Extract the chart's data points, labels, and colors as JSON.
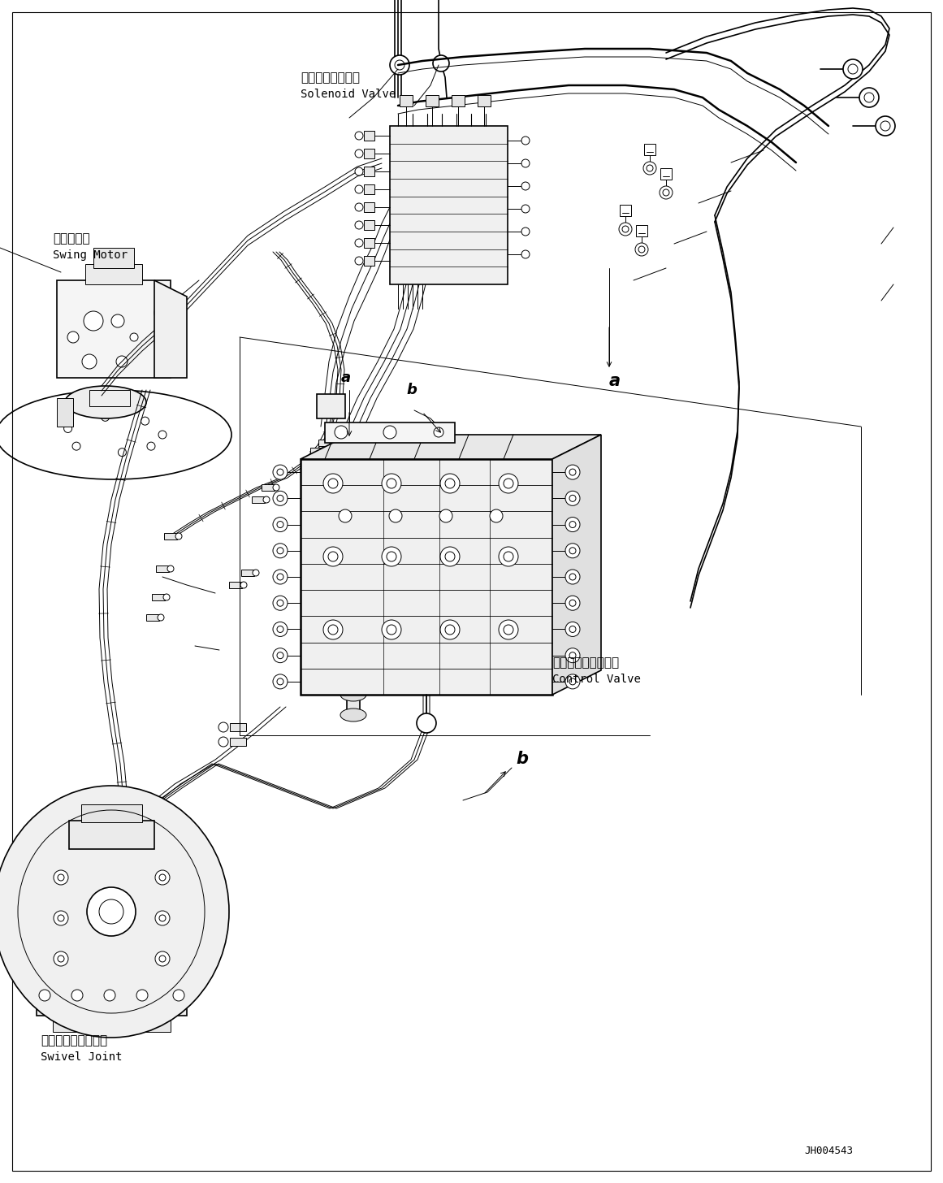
{
  "bg_color": "#ffffff",
  "line_color": "#000000",
  "fig_width": 11.61,
  "fig_height": 14.56,
  "dpi": 100,
  "part_code": "JH004543",
  "labels": {
    "swing_motor_jp": "旋回モータ",
    "swing_motor_en": "Swing Motor",
    "solenoid_valve_jp": "ソレノイドバルブ",
    "solenoid_valve_en": "Solenoid Valve",
    "control_valve_jp": "コントロールバルブ",
    "control_valve_en": "Control Valve",
    "swivel_joint_jp": "スイベルジョイント",
    "swivel_joint_en": "Swivel Joint"
  }
}
